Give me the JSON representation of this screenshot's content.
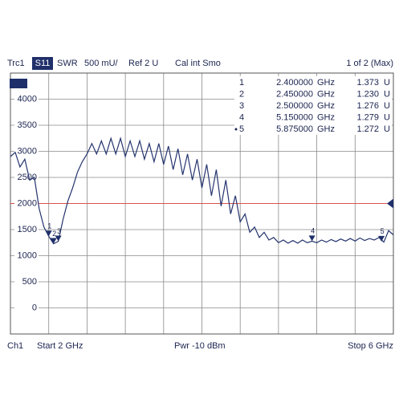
{
  "chart_data": {
    "type": "line",
    "header": {
      "trace": "Trc1",
      "parameter": "S11",
      "format": "SWR",
      "scale": "500 mU/",
      "ref": "Ref 2 U",
      "cal": "Cal int Smo",
      "page": "1 of 2 (Max)"
    },
    "footer": {
      "channel": "Ch1",
      "start": "Start  2 GHz",
      "power": "Pwr  -10 dBm",
      "stop": "Stop  6 GHz"
    },
    "color": "#24346e",
    "ref_color": "#d9534f",
    "ref_value": 2000,
    "xlim": [
      2,
      6
    ],
    "xticks": [
      2,
      2.4,
      2.8,
      3.2,
      3.6,
      4,
      4.4,
      4.8,
      5.2,
      5.6,
      6
    ],
    "ylim": [
      -500,
      4500
    ],
    "yticks": [
      0,
      500,
      1000,
      1500,
      2000,
      2500,
      3000,
      3500,
      4000
    ],
    "grid": true,
    "x": [
      2,
      2.05,
      2.1,
      2.15,
      2.2,
      2.25,
      2.3,
      2.35,
      2.4,
      2.45,
      2.5,
      2.55,
      2.6,
      2.65,
      2.7,
      2.75,
      2.8,
      2.85,
      2.9,
      2.95,
      3,
      3.05,
      3.1,
      3.15,
      3.2,
      3.25,
      3.3,
      3.35,
      3.4,
      3.45,
      3.5,
      3.55,
      3.6,
      3.65,
      3.7,
      3.75,
      3.8,
      3.85,
      3.9,
      3.95,
      4,
      4.05,
      4.1,
      4.15,
      4.2,
      4.25,
      4.3,
      4.35,
      4.4,
      4.45,
      4.5,
      4.55,
      4.6,
      4.65,
      4.7,
      4.75,
      4.8,
      4.85,
      4.9,
      4.95,
      5,
      5.05,
      5.1,
      5.15,
      5.2,
      5.25,
      5.3,
      5.35,
      5.4,
      5.45,
      5.5,
      5.55,
      5.6,
      5.65,
      5.7,
      5.75,
      5.8,
      5.85,
      5.9,
      5.95,
      6
    ],
    "values": [
      2900,
      2980,
      2700,
      2850,
      2450,
      2500,
      1900,
      1550,
      1373,
      1230,
      1276,
      1700,
      2050,
      2300,
      2600,
      2800,
      2950,
      3150,
      2950,
      3200,
      2950,
      3250,
      2950,
      3250,
      2900,
      3200,
      2900,
      3200,
      2850,
      3150,
      2800,
      3150,
      2750,
      3100,
      2650,
      3050,
      2550,
      2950,
      2450,
      2850,
      2300,
      2750,
      2150,
      2650,
      1950,
      2450,
      1800,
      2150,
      1650,
      1800,
      1450,
      1550,
      1350,
      1450,
      1300,
      1350,
      1250,
      1300,
      1240,
      1290,
      1240,
      1300,
      1250,
      1279,
      1250,
      1300,
      1260,
      1310,
      1270,
      1320,
      1280,
      1330,
      1280,
      1340,
      1290,
      1330,
      1300,
      1350,
      1260,
      1480,
      1400
    ],
    "markers": [
      {
        "id": "1",
        "x": 2.4,
        "x_label": "2.400000",
        "x_unit": "GHz",
        "y": 1373,
        "y_label": "1.373",
        "y_unit": "U"
      },
      {
        "id": "2",
        "x": 2.45,
        "x_label": "2.450000",
        "x_unit": "GHz",
        "y": 1230,
        "y_label": "1.230",
        "y_unit": "U"
      },
      {
        "id": "3",
        "x": 2.5,
        "x_label": "2.500000",
        "x_unit": "GHz",
        "y": 1276,
        "y_label": "1.276",
        "y_unit": "U"
      },
      {
        "id": "4",
        "x": 5.15,
        "x_label": "5.150000",
        "x_unit": "GHz",
        "y": 1279,
        "y_label": "1.279",
        "y_unit": "U"
      },
      {
        "id": "5",
        "x": 5.875,
        "x_label": "5.875000",
        "x_unit": "GHz",
        "y": 1272,
        "y_label": "1.272",
        "y_unit": "U"
      }
    ]
  }
}
